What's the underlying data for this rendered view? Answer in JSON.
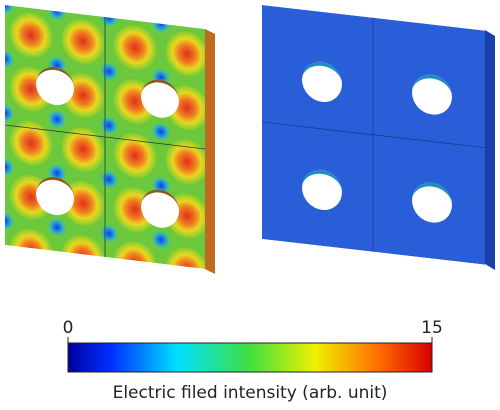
{
  "colorbar": {
    "ticks": [
      0,
      15
    ],
    "label": "Electric filed intensity (arb. unit)"
  }
}
